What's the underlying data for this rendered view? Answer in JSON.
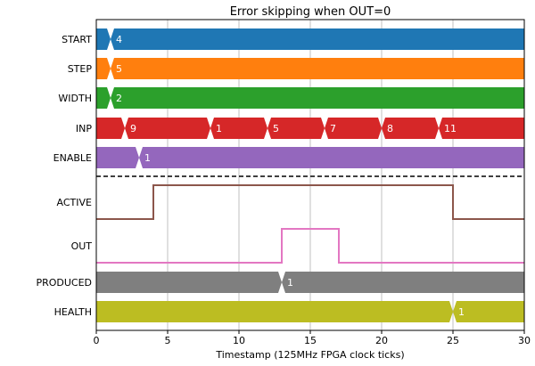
{
  "chart_data": {
    "type": "timing",
    "title": "Error skipping when OUT=0",
    "xlabel": "Timestamp (125MHz FPGA clock ticks)",
    "xlim": [
      0,
      30
    ],
    "xticks": [
      0,
      5,
      10,
      15,
      20,
      25,
      30
    ],
    "grid_x": true,
    "buses": [
      {
        "name": "START",
        "color": "#1f77b4",
        "transitions": [
          {
            "t": 1,
            "value": "4"
          }
        ]
      },
      {
        "name": "STEP",
        "color": "#ff7f0e",
        "transitions": [
          {
            "t": 1,
            "value": "5"
          }
        ]
      },
      {
        "name": "WIDTH",
        "color": "#2ca02c",
        "transitions": [
          {
            "t": 1,
            "value": "2"
          }
        ]
      },
      {
        "name": "INP",
        "color": "#d62728",
        "transitions": [
          {
            "t": 2,
            "value": "9"
          },
          {
            "t": 8,
            "value": "1"
          },
          {
            "t": 12,
            "value": "5"
          },
          {
            "t": 16,
            "value": "7"
          },
          {
            "t": 20,
            "value": "8"
          },
          {
            "t": 24,
            "value": "11"
          }
        ]
      },
      {
        "name": "ENABLE",
        "color": "#9467bd",
        "transitions": [
          {
            "t": 3,
            "value": "1"
          }
        ]
      }
    ],
    "bits": [
      {
        "name": "ACTIVE",
        "color": "#8c564b",
        "changes": [
          {
            "t": 0,
            "v": 0
          },
          {
            "t": 4,
            "v": 1
          },
          {
            "t": 25,
            "v": 0
          }
        ]
      },
      {
        "name": "OUT",
        "color": "#e377c2",
        "changes": [
          {
            "t": 0,
            "v": 0
          },
          {
            "t": 13,
            "v": 1
          },
          {
            "t": 17,
            "v": 0
          }
        ]
      }
    ],
    "buses_bottom": [
      {
        "name": "PRODUCED",
        "color": "#7f7f7f",
        "transitions": [
          {
            "t": 13,
            "value": "1"
          }
        ]
      },
      {
        "name": "HEALTH",
        "color": "#bcbd22",
        "transitions": [
          {
            "t": 25,
            "value": "1"
          }
        ]
      }
    ]
  }
}
